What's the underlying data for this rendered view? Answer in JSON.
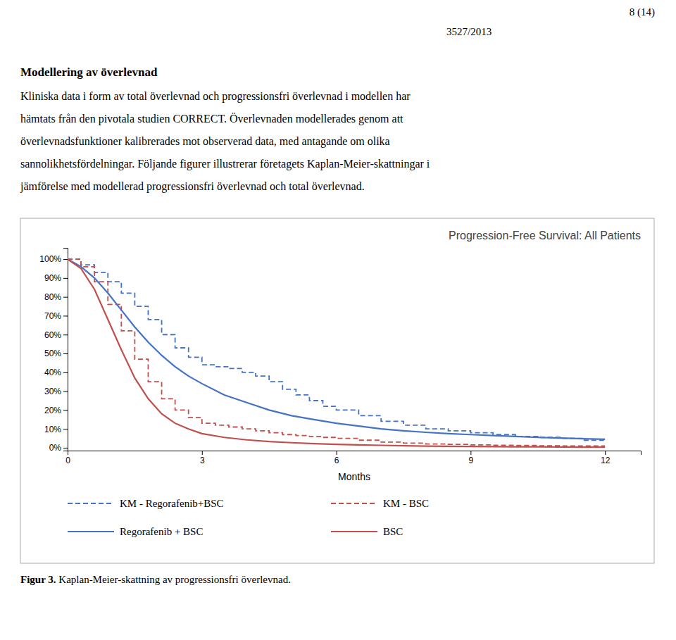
{
  "page_number": "8 (14)",
  "doc_number": "3527/2013",
  "heading": "Modellering av överlevnad",
  "paragraphs": [
    "Kliniska data i form av total överlevnad och progressionsfri överlevnad i modellen har",
    "hämtats från den pivotala studien CORRECT. Överlevnaden modellerades genom att",
    "överlevnadsfunktioner kalibrerades mot observerad data, med antagande om olika",
    "sannolikhetsfördelningar. Följande figurer illustrerar företagets Kaplan-Meier-skattningar i",
    "jämförelse med modellerad progressionsfri överlevnad och total överlevnad."
  ],
  "caption_label": "Figur 3.",
  "caption": " Kaplan-Meier-skattning av progressionsfri överlevnad.",
  "chart_data": {
    "type": "line",
    "title": "Progression-Free Survival: All Patients",
    "x_label": "Months",
    "xlim": [
      0,
      12.8
    ],
    "xticks": [
      0,
      3,
      6,
      9,
      12
    ],
    "ylim": [
      -0.015,
      1.06
    ],
    "yticks": [
      {
        "value": 0,
        "label": "0%"
      },
      {
        "value": 0.1,
        "label": "10%"
      },
      {
        "value": 0.2,
        "label": "20%"
      },
      {
        "value": 0.3,
        "label": "30%"
      },
      {
        "value": 0.4,
        "label": "40%"
      },
      {
        "value": 0.5,
        "label": "50%"
      },
      {
        "value": 0.6,
        "label": "60%"
      },
      {
        "value": 0.7,
        "label": "70%"
      },
      {
        "value": 0.8,
        "label": "80%"
      },
      {
        "value": 0.9,
        "label": "90%"
      },
      {
        "value": 1.0,
        "label": "100%"
      }
    ],
    "grid": false,
    "legend": "bottom",
    "series": [
      {
        "name": "KM - Regorafenib+BSC",
        "type": "step",
        "line_style": "dashed",
        "color": "#4472C4",
        "x": [
          0,
          0.3,
          0.6,
          0.9,
          1.2,
          1.5,
          1.8,
          2.1,
          2.4,
          2.7,
          3.0,
          3.3,
          3.6,
          3.9,
          4.2,
          4.5,
          4.8,
          5.1,
          5.4,
          5.7,
          6.0,
          6.5,
          7.0,
          7.5,
          8.0,
          8.5,
          9.0,
          9.5,
          10.0,
          10.5,
          11.0,
          11.5,
          12.0
        ],
        "values": [
          1.0,
          0.97,
          0.93,
          0.88,
          0.82,
          0.75,
          0.68,
          0.6,
          0.53,
          0.48,
          0.44,
          0.43,
          0.42,
          0.4,
          0.38,
          0.35,
          0.31,
          0.28,
          0.25,
          0.22,
          0.2,
          0.17,
          0.14,
          0.12,
          0.1,
          0.09,
          0.08,
          0.07,
          0.06,
          0.055,
          0.05,
          0.04,
          0.035
        ]
      },
      {
        "name": "KM - BSC",
        "type": "step",
        "line_style": "dashed",
        "color": "#C0504D",
        "x": [
          0,
          0.3,
          0.6,
          0.9,
          1.2,
          1.5,
          1.8,
          2.1,
          2.4,
          2.7,
          3.0,
          3.3,
          3.6,
          3.9,
          4.2,
          4.5,
          4.8,
          5.1,
          5.4,
          5.7,
          6.0,
          6.5,
          7.0,
          7.5,
          8.0,
          8.5,
          9.0,
          9.5,
          10.0,
          10.5,
          11.0,
          11.5,
          12.0
        ],
        "values": [
          1.0,
          0.96,
          0.88,
          0.76,
          0.62,
          0.47,
          0.35,
          0.26,
          0.2,
          0.16,
          0.13,
          0.12,
          0.11,
          0.1,
          0.09,
          0.08,
          0.07,
          0.065,
          0.06,
          0.055,
          0.05,
          0.04,
          0.03,
          0.025,
          0.02,
          0.018,
          0.015,
          0.013,
          0.012,
          0.011,
          0.01,
          0.01,
          0.01
        ]
      },
      {
        "name": "Regorafenib + BSC",
        "type": "line",
        "line_style": "solid",
        "color": "#4472C4",
        "x": [
          0,
          0.3,
          0.6,
          0.9,
          1.2,
          1.5,
          1.8,
          2.1,
          2.4,
          2.7,
          3.0,
          3.5,
          4.0,
          4.5,
          5.0,
          5.5,
          6.0,
          6.5,
          7.0,
          7.5,
          8.0,
          8.5,
          9.0,
          9.5,
          10.0,
          10.5,
          11.0,
          11.5,
          12.0
        ],
        "values": [
          1.0,
          0.96,
          0.9,
          0.82,
          0.73,
          0.64,
          0.56,
          0.49,
          0.43,
          0.38,
          0.34,
          0.28,
          0.24,
          0.2,
          0.17,
          0.15,
          0.13,
          0.115,
          0.1,
          0.09,
          0.082,
          0.075,
          0.07,
          0.065,
          0.06,
          0.055,
          0.052,
          0.048,
          0.045
        ]
      },
      {
        "name": "BSC",
        "type": "line",
        "line_style": "solid",
        "color": "#C0504D",
        "x": [
          0,
          0.3,
          0.6,
          0.9,
          1.2,
          1.5,
          1.8,
          2.1,
          2.4,
          2.7,
          3.0,
          3.5,
          4.0,
          4.5,
          5.0,
          5.5,
          6.0,
          6.5,
          7.0,
          7.5,
          8.0,
          8.5,
          9.0,
          9.5,
          10.0,
          10.5,
          11.0,
          11.5,
          12.0
        ],
        "values": [
          1.0,
          0.95,
          0.84,
          0.68,
          0.52,
          0.37,
          0.26,
          0.18,
          0.13,
          0.1,
          0.075,
          0.055,
          0.042,
          0.033,
          0.027,
          0.022,
          0.018,
          0.015,
          0.013,
          0.011,
          0.009,
          0.008,
          0.007,
          0.006,
          0.005,
          0.005,
          0.004,
          0.003,
          0.003
        ]
      }
    ]
  }
}
